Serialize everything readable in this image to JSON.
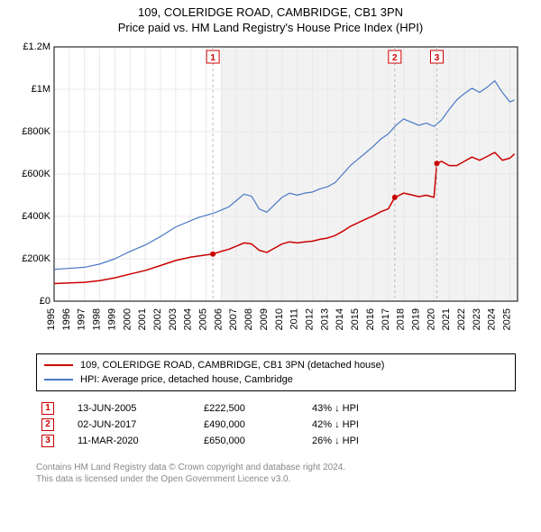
{
  "title_line1": "109, COLERIDGE ROAD, CAMBRIDGE, CB1 3PN",
  "title_line2": "Price paid vs. HM Land Registry's House Price Index (HPI)",
  "chart": {
    "type": "line",
    "background_color": "#ffffff",
    "grid_color": "#e8e8e8",
    "axis_color": "#000000",
    "shaded_region_color": "#f2f2f2",
    "shaded_region_start": 2006,
    "shaded_region_end": 2025.5,
    "y_axis": {
      "min": 0,
      "max": 1200000,
      "tick_step": 200000,
      "tick_labels": [
        "£0",
        "£200K",
        "£400K",
        "£600K",
        "£800K",
        "£1M",
        "£1.2M"
      ],
      "label_fontsize": 11,
      "label_color": "#000000"
    },
    "x_axis": {
      "min": 1995,
      "max": 2025.5,
      "ticks": [
        1995,
        1996,
        1997,
        1998,
        1999,
        2000,
        2001,
        2002,
        2003,
        2004,
        2005,
        2006,
        2007,
        2008,
        2009,
        2010,
        2011,
        2012,
        2013,
        2014,
        2015,
        2016,
        2017,
        2018,
        2019,
        2020,
        2021,
        2022,
        2023,
        2024,
        2025
      ],
      "label_fontsize": 11,
      "label_color": "#000000",
      "label_rotation": -90
    },
    "series": [
      {
        "name": "hpi",
        "color": "#4a78c4",
        "line_width": 1.2,
        "points": [
          [
            1995,
            150000
          ],
          [
            1996,
            155000
          ],
          [
            1997,
            160000
          ],
          [
            1998,
            175000
          ],
          [
            1999,
            200000
          ],
          [
            2000,
            235000
          ],
          [
            2001,
            265000
          ],
          [
            2002,
            305000
          ],
          [
            2003,
            350000
          ],
          [
            2004,
            380000
          ],
          [
            2004.5,
            395000
          ],
          [
            2005,
            405000
          ],
          [
            2005.5,
            415000
          ],
          [
            2006,
            430000
          ],
          [
            2006.5,
            445000
          ],
          [
            2007,
            475000
          ],
          [
            2007.5,
            505000
          ],
          [
            2008,
            495000
          ],
          [
            2008.5,
            435000
          ],
          [
            2009,
            420000
          ],
          [
            2009.5,
            455000
          ],
          [
            2010,
            490000
          ],
          [
            2010.5,
            510000
          ],
          [
            2011,
            500000
          ],
          [
            2011.5,
            510000
          ],
          [
            2012,
            515000
          ],
          [
            2012.5,
            530000
          ],
          [
            2013,
            540000
          ],
          [
            2013.5,
            560000
          ],
          [
            2014,
            600000
          ],
          [
            2014.5,
            640000
          ],
          [
            2015,
            670000
          ],
          [
            2015.5,
            700000
          ],
          [
            2016,
            730000
          ],
          [
            2016.5,
            765000
          ],
          [
            2017,
            790000
          ],
          [
            2017.5,
            830000
          ],
          [
            2018,
            860000
          ],
          [
            2018.5,
            845000
          ],
          [
            2019,
            830000
          ],
          [
            2019.5,
            840000
          ],
          [
            2020,
            825000
          ],
          [
            2020.5,
            855000
          ],
          [
            2021,
            905000
          ],
          [
            2021.5,
            950000
          ],
          [
            2022,
            980000
          ],
          [
            2022.5,
            1005000
          ],
          [
            2023,
            985000
          ],
          [
            2023.5,
            1010000
          ],
          [
            2024,
            1040000
          ],
          [
            2024.5,
            985000
          ],
          [
            2025,
            940000
          ],
          [
            2025.3,
            950000
          ]
        ]
      },
      {
        "name": "property",
        "color": "#cc0000",
        "line_width": 1.5,
        "points": [
          [
            1995,
            83000
          ],
          [
            1996,
            86000
          ],
          [
            1997,
            89000
          ],
          [
            1998,
            97000
          ],
          [
            1999,
            110000
          ],
          [
            2000,
            128000
          ],
          [
            2001,
            145000
          ],
          [
            2002,
            168000
          ],
          [
            2003,
            192000
          ],
          [
            2004,
            208000
          ],
          [
            2005,
            218000
          ],
          [
            2005.45,
            222500
          ],
          [
            2006,
            235000
          ],
          [
            2006.5,
            245000
          ],
          [
            2007,
            260000
          ],
          [
            2007.5,
            275000
          ],
          [
            2008,
            270000
          ],
          [
            2008.5,
            240000
          ],
          [
            2009,
            230000
          ],
          [
            2009.5,
            250000
          ],
          [
            2010,
            270000
          ],
          [
            2010.5,
            280000
          ],
          [
            2011,
            275000
          ],
          [
            2011.5,
            280000
          ],
          [
            2012,
            283000
          ],
          [
            2012.5,
            292000
          ],
          [
            2013,
            298000
          ],
          [
            2013.5,
            310000
          ],
          [
            2014,
            330000
          ],
          [
            2014.5,
            353000
          ],
          [
            2015,
            370000
          ],
          [
            2015.5,
            387000
          ],
          [
            2016,
            403000
          ],
          [
            2016.5,
            422000
          ],
          [
            2017,
            436000
          ],
          [
            2017.42,
            490000
          ],
          [
            2017.5,
            492000
          ],
          [
            2018,
            510000
          ],
          [
            2018.5,
            502000
          ],
          [
            2019,
            493000
          ],
          [
            2019.5,
            500000
          ],
          [
            2020,
            490000
          ],
          [
            2020.19,
            650000
          ],
          [
            2020.5,
            660000
          ],
          [
            2021,
            640000
          ],
          [
            2021.5,
            640000
          ],
          [
            2022,
            660000
          ],
          [
            2022.5,
            680000
          ],
          [
            2023,
            665000
          ],
          [
            2023.5,
            683000
          ],
          [
            2024,
            702000
          ],
          [
            2024.5,
            665000
          ],
          [
            2025,
            675000
          ],
          [
            2025.3,
            695000
          ]
        ]
      }
    ],
    "sale_markers": [
      {
        "n": "1",
        "year": 2005.45,
        "value": 222500
      },
      {
        "n": "2",
        "year": 2017.42,
        "value": 490000
      },
      {
        "n": "3",
        "year": 2020.19,
        "value": 650000
      }
    ],
    "sale_marker_style": {
      "box_border": "#cc0000",
      "text_color": "#cc0000",
      "vline_color": "#bbbbbb",
      "vline_dash": "3,3",
      "dot_color": "#cc0000",
      "dot_radius": 3
    }
  },
  "legend": {
    "border_color": "#000000",
    "fontsize": 11,
    "items": [
      {
        "color": "#cc0000",
        "label": "109, COLERIDGE ROAD, CAMBRIDGE, CB1 3PN (detached house)"
      },
      {
        "color": "#4a78c4",
        "label": "HPI: Average price, detached house, Cambridge"
      }
    ]
  },
  "sales_table": {
    "fontsize": 11,
    "rows": [
      {
        "n": "1",
        "date": "13-JUN-2005",
        "price": "£222,500",
        "delta": "43% ↓ HPI"
      },
      {
        "n": "2",
        "date": "02-JUN-2017",
        "price": "£490,000",
        "delta": "42% ↓ HPI"
      },
      {
        "n": "3",
        "date": "11-MAR-2020",
        "price": "£650,000",
        "delta": "26% ↓ HPI"
      }
    ]
  },
  "footer": {
    "line1": "Contains HM Land Registry data © Crown copyright and database right 2024.",
    "line2": "This data is licensed under the Open Government Licence v3.0.",
    "color": "#888888",
    "fontsize": 10
  }
}
